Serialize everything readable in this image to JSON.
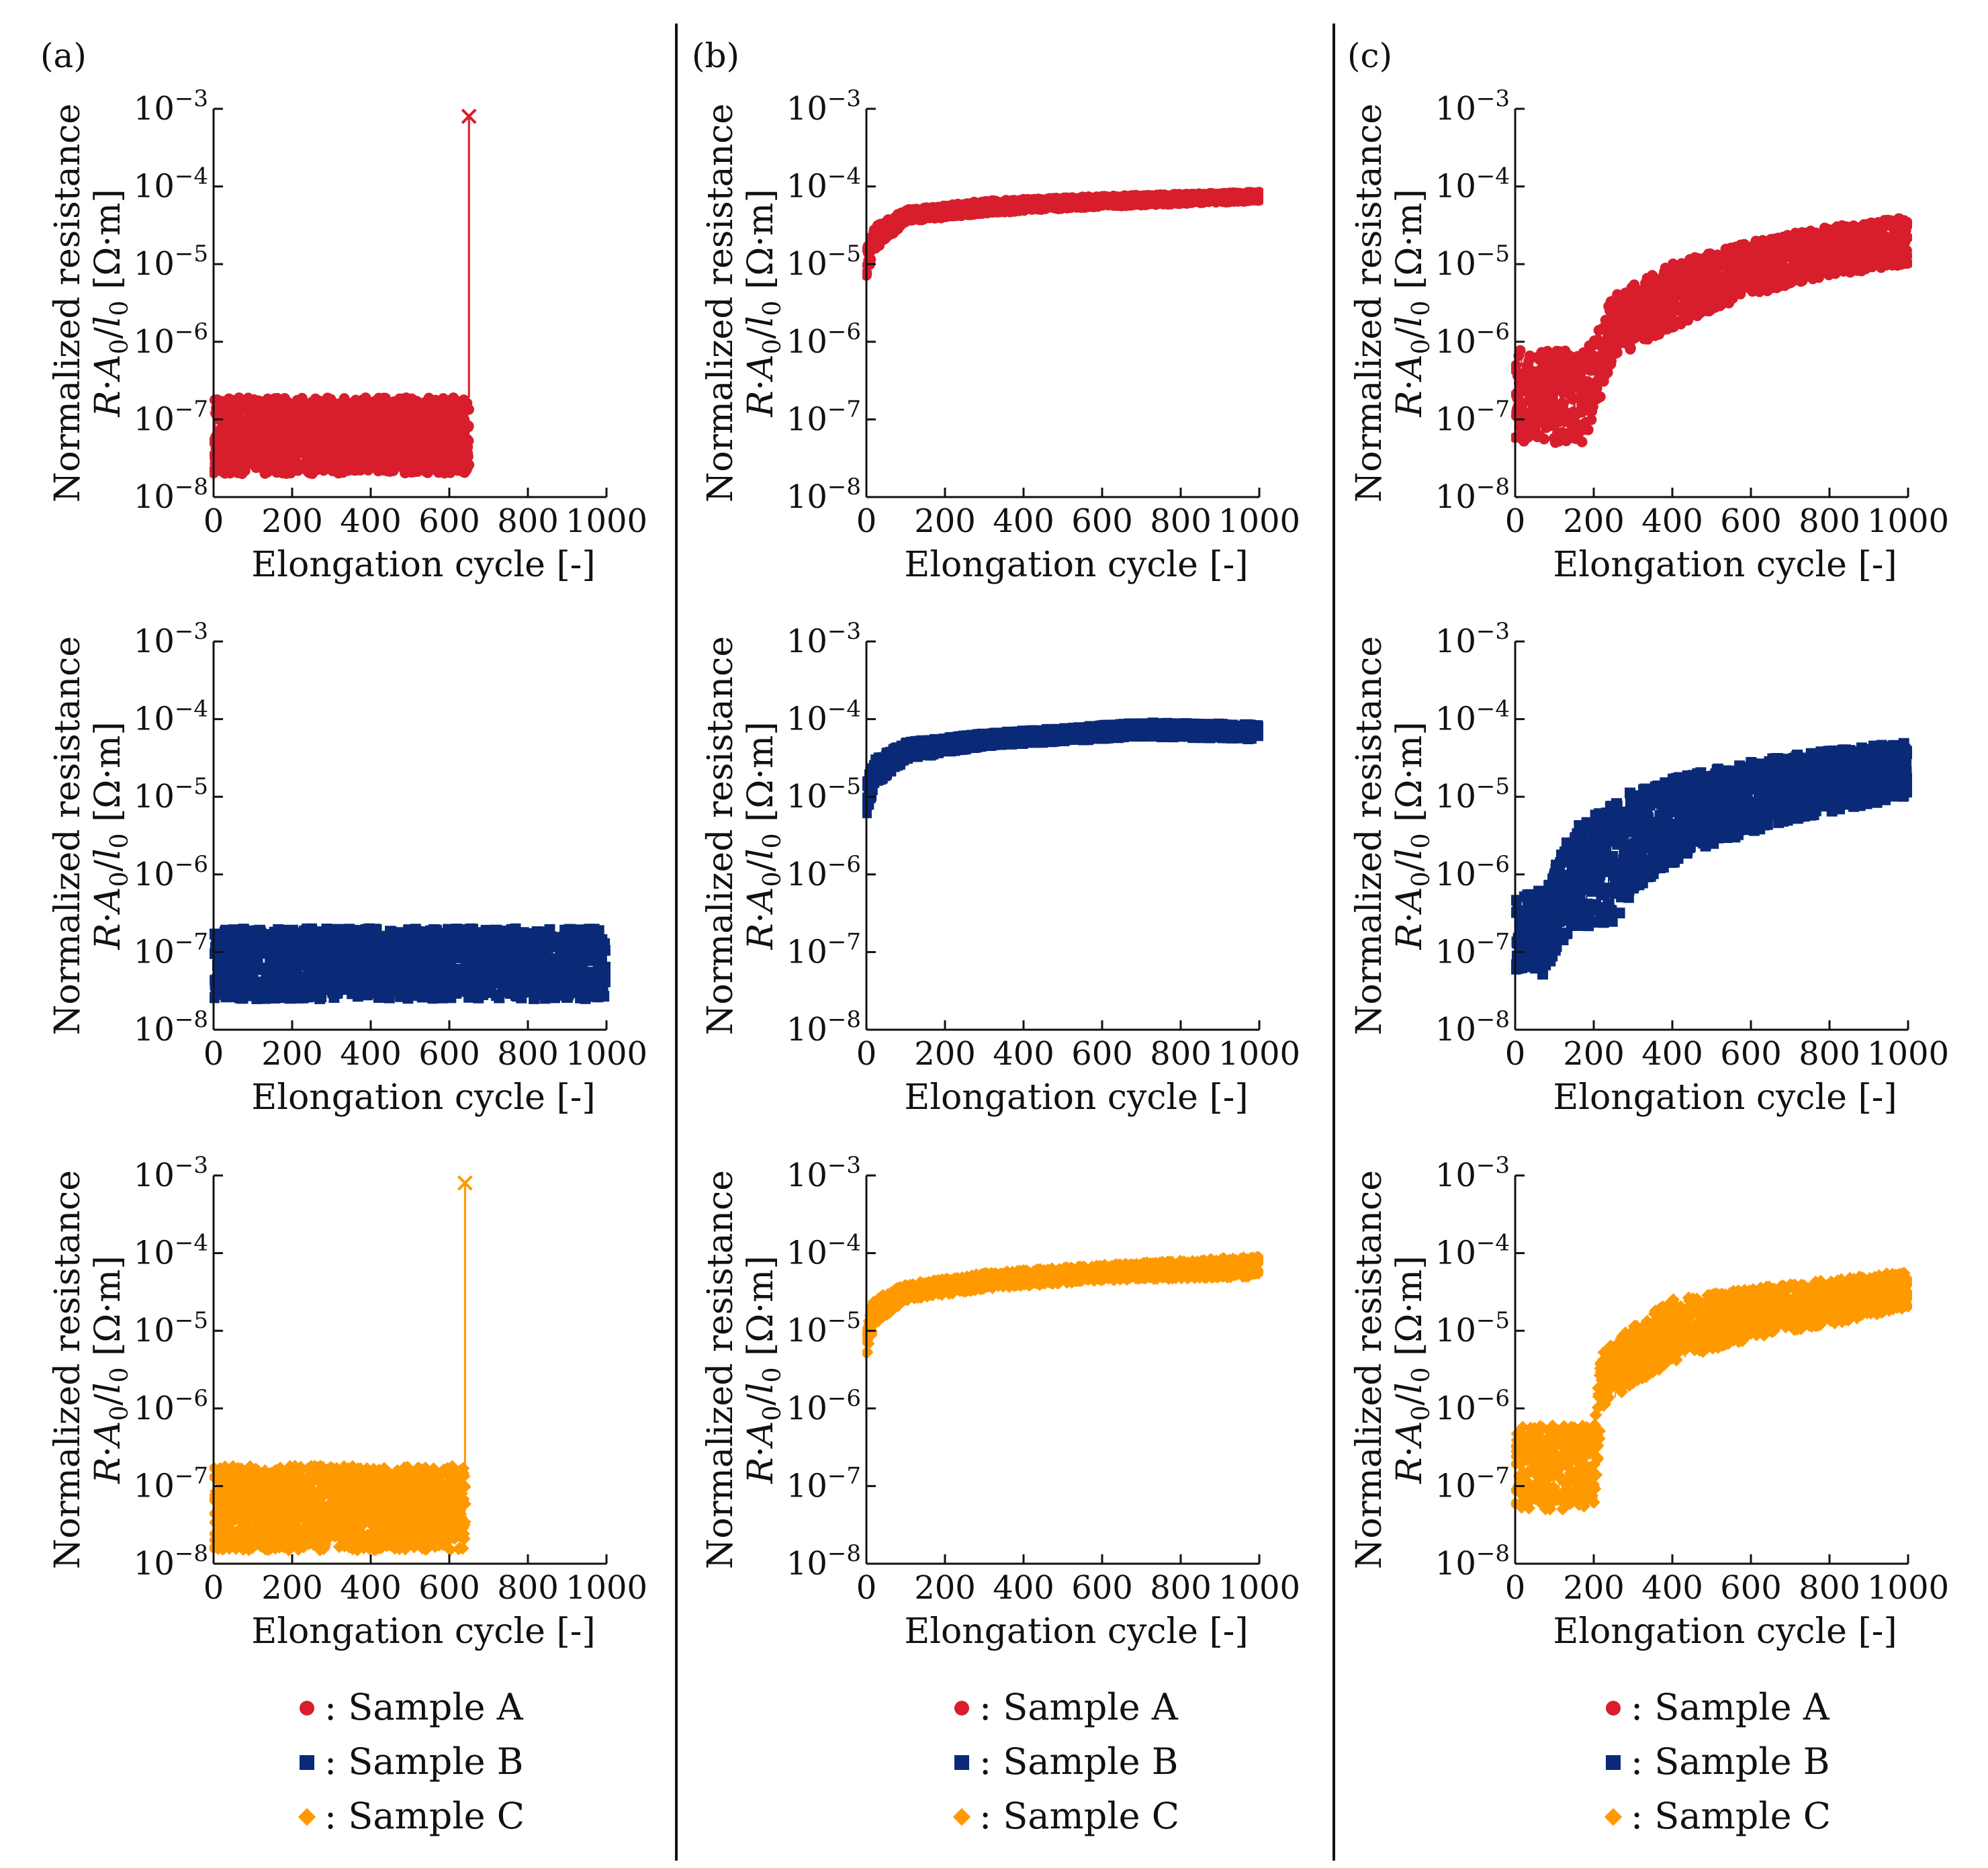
{
  "figure": {
    "colors": {
      "sample_a": "#d81e2c",
      "sample_b": "#0a2a78",
      "sample_c": "#ff9900",
      "ink": "#111111"
    }
  },
  "columns": [
    {
      "tag": "(a)",
      "legend": [
        {
          "symbol": "●",
          "text": ": Sample A",
          "color": "#d81e2c"
        },
        {
          "symbol": "■",
          "text": ": Sample B",
          "color": "#0a2a78"
        },
        {
          "symbol": "◆",
          "text": ": Sample C",
          "color": "#ff9900"
        }
      ]
    },
    {
      "tag": "(b)",
      "legend": [
        {
          "symbol": "●",
          "text": ": Sample A",
          "color": "#d81e2c"
        },
        {
          "symbol": "■",
          "text": ": Sample B",
          "color": "#0a2a78"
        },
        {
          "symbol": "◆",
          "text": ": Sample C",
          "color": "#ff9900"
        }
      ]
    },
    {
      "tag": "(c)",
      "legend": [
        {
          "symbol": "●",
          "text": ": Sample A",
          "color": "#d81e2c"
        },
        {
          "symbol": "■",
          "text": ": Sample B",
          "color": "#0a2a78"
        },
        {
          "symbol": "◆",
          "text": ": Sample C",
          "color": "#ff9900"
        }
      ]
    }
  ],
  "chart_data": [
    {
      "id": "a-A",
      "type": "scatter",
      "column": "a",
      "row": 0,
      "series": "Sample A",
      "color": "#d81e2c",
      "marker": "circle",
      "xlabel": "Elongation cycle [-]",
      "ylabel": [
        "Normalized resistance",
        "R·A0/l0 [Ω·m]"
      ],
      "xlim": [
        0,
        1000
      ],
      "ylim": [
        1e-08,
        0.001
      ],
      "yscale": "log",
      "xticks": [
        "0",
        "200",
        "400",
        "600",
        "800",
        "1000"
      ],
      "yticks": [
        "10-8",
        "10-7",
        "10-6",
        "10-5",
        "10-4",
        "10-3"
      ],
      "band": [
        [
          0,
          2e-08,
          1.9e-07
        ],
        [
          650,
          2e-08,
          1.9e-07
        ]
      ],
      "failure": {
        "cycle": 650,
        "value": 0.0008,
        "marker": "x"
      }
    },
    {
      "id": "a-B",
      "type": "scatter",
      "column": "a",
      "row": 1,
      "series": "Sample B",
      "color": "#0a2a78",
      "marker": "square",
      "xlabel": "Elongation cycle [-]",
      "ylabel": [
        "Normalized resistance",
        "R·A0/l0 [Ω·m]"
      ],
      "xlim": [
        0,
        1000
      ],
      "ylim": [
        1e-08,
        0.001
      ],
      "yscale": "log",
      "xticks": [
        "0",
        "200",
        "400",
        "600",
        "800",
        "1000"
      ],
      "yticks": [
        "10-8",
        "10-7",
        "10-6",
        "10-5",
        "10-4",
        "10-3"
      ],
      "band": [
        [
          0,
          2.5e-08,
          2e-07
        ],
        [
          1000,
          2.5e-08,
          2e-07
        ]
      ]
    },
    {
      "id": "a-C",
      "type": "scatter",
      "column": "a",
      "row": 2,
      "series": "Sample C",
      "color": "#ff9900",
      "marker": "diamond",
      "xlabel": "Elongation cycle [-]",
      "ylabel": [
        "Normalized resistance",
        "R·A0/l0 [Ω·m]"
      ],
      "xlim": [
        0,
        1000
      ],
      "ylim": [
        1e-08,
        0.001
      ],
      "yscale": "log",
      "xticks": [
        "0",
        "200",
        "400",
        "600",
        "800",
        "1000"
      ],
      "yticks": [
        "10-8",
        "10-7",
        "10-6",
        "10-5",
        "10-4",
        "10-3"
      ],
      "band": [
        [
          0,
          1.5e-08,
          1.8e-07
        ],
        [
          640,
          1.5e-08,
          1.8e-07
        ]
      ],
      "failure": {
        "cycle": 640,
        "value": 0.0008,
        "marker": "x"
      }
    },
    {
      "id": "b-A",
      "type": "scatter",
      "column": "b",
      "row": 0,
      "series": "Sample A",
      "color": "#d81e2c",
      "marker": "circle",
      "xlabel": "Elongation cycle [-]",
      "ylabel": [
        "Normalized resistance",
        "R·A0/l0 [Ω·m]"
      ],
      "xlim": [
        0,
        1000
      ],
      "ylim": [
        1e-08,
        0.001
      ],
      "yscale": "log",
      "xticks": [
        "0",
        "200",
        "400",
        "600",
        "800",
        "1000"
      ],
      "yticks": [
        "10-8",
        "10-7",
        "10-6",
        "10-5",
        "10-4",
        "10-3"
      ],
      "band": [
        [
          0,
          7e-06,
          1.5e-05
        ],
        [
          20,
          1.5e-05,
          3e-05
        ],
        [
          100,
          3.5e-05,
          5e-05
        ],
        [
          300,
          4.5e-05,
          6.5e-05
        ],
        [
          600,
          5.5e-05,
          7.5e-05
        ],
        [
          1000,
          6.5e-05,
          8.5e-05
        ]
      ]
    },
    {
      "id": "b-B",
      "type": "scatter",
      "column": "b",
      "row": 1,
      "series": "Sample B",
      "color": "#0a2a78",
      "marker": "square",
      "xlabel": "Elongation cycle [-]",
      "ylabel": [
        "Normalized resistance",
        "R·A0/l0 [Ω·m]"
      ],
      "xlim": [
        0,
        1000
      ],
      "ylim": [
        1e-08,
        0.001
      ],
      "yscale": "log",
      "xticks": [
        "0",
        "200",
        "400",
        "600",
        "800",
        "1000"
      ],
      "yticks": [
        "10-8",
        "10-7",
        "10-6",
        "10-5",
        "10-4",
        "10-3"
      ],
      "band": [
        [
          0,
          6e-06,
          1.4e-05
        ],
        [
          20,
          1.4e-05,
          3e-05
        ],
        [
          100,
          3e-05,
          5e-05
        ],
        [
          300,
          4.5e-05,
          6.5e-05
        ],
        [
          700,
          6e-05,
          9e-05
        ],
        [
          1000,
          5.5e-05,
          8.5e-05
        ]
      ]
    },
    {
      "id": "b-C",
      "type": "scatter",
      "column": "b",
      "row": 2,
      "series": "Sample C",
      "color": "#ff9900",
      "marker": "diamond",
      "xlabel": "Elongation cycle [-]",
      "ylabel": [
        "Normalized resistance",
        "R·A0/l0 [Ω·m]"
      ],
      "xlim": [
        0,
        1000
      ],
      "ylim": [
        1e-08,
        0.001
      ],
      "yscale": "log",
      "xticks": [
        "0",
        "200",
        "400",
        "600",
        "800",
        "1000"
      ],
      "yticks": [
        "10-8",
        "10-7",
        "10-6",
        "10-5",
        "10-4",
        "10-3"
      ],
      "band": [
        [
          0,
          5e-06,
          1e-05
        ],
        [
          20,
          1.2e-05,
          2.5e-05
        ],
        [
          100,
          2.5e-05,
          4e-05
        ],
        [
          300,
          3.5e-05,
          5.5e-05
        ],
        [
          600,
          4.5e-05,
          7e-05
        ],
        [
          1000,
          5e-05,
          9e-05
        ]
      ]
    },
    {
      "id": "c-A",
      "type": "scatter",
      "column": "c",
      "row": 0,
      "series": "Sample A",
      "color": "#d81e2c",
      "marker": "circle",
      "xlabel": "Elongation cycle [-]",
      "ylabel": [
        "Normalized resistance",
        "R·A0/l0 [Ω·m]"
      ],
      "xlim": [
        0,
        1000
      ],
      "ylim": [
        1e-08,
        0.001
      ],
      "yscale": "log",
      "xticks": [
        "0",
        "200",
        "400",
        "600",
        "800",
        "1000"
      ],
      "yticks": [
        "10-8",
        "10-7",
        "10-6",
        "10-5",
        "10-4",
        "10-3"
      ],
      "band": [
        [
          0,
          5e-08,
          8e-07
        ],
        [
          170,
          5e-08,
          8e-07
        ],
        [
          200,
          1e-07,
          1e-06
        ],
        [
          250,
          6e-07,
          4e-06
        ],
        [
          400,
          1.5e-06,
          1e-05
        ],
        [
          600,
          4e-06,
          2e-05
        ],
        [
          800,
          7e-06,
          3e-05
        ],
        [
          1000,
          1e-05,
          4e-05
        ]
      ]
    },
    {
      "id": "c-B",
      "type": "scatter",
      "column": "c",
      "row": 1,
      "series": "Sample B",
      "color": "#0a2a78",
      "marker": "square",
      "xlabel": "Elongation cycle [-]",
      "ylabel": [
        "Normalized resistance",
        "R·A0/l0 [Ω·m]"
      ],
      "xlim": [
        0,
        1000
      ],
      "ylim": [
        1e-08,
        0.001
      ],
      "yscale": "log",
      "xticks": [
        "0",
        "200",
        "400",
        "600",
        "800",
        "1000"
      ],
      "yticks": [
        "10-8",
        "10-7",
        "10-6",
        "10-5",
        "10-4",
        "10-3"
      ],
      "band": [
        [
          0,
          6e-08,
          5e-07
        ],
        [
          80,
          5e-08,
          7e-07
        ],
        [
          100,
          1e-07,
          1.2e-06
        ],
        [
          150,
          2e-07,
          4e-06
        ],
        [
          250,
          2e-07,
          8e-06
        ],
        [
          300,
          6e-07,
          1.2e-05
        ],
        [
          450,
          2e-06,
          2e-05
        ],
        [
          700,
          5e-06,
          3.5e-05
        ],
        [
          1000,
          1e-05,
          5e-05
        ]
      ]
    },
    {
      "id": "c-C",
      "type": "scatter",
      "column": "c",
      "row": 2,
      "series": "Sample C",
      "color": "#ff9900",
      "marker": "diamond",
      "xlabel": "Elongation cycle [-]",
      "ylabel": [
        "Normalized resistance",
        "R·A0/l0 [Ω·m]"
      ],
      "xlim": [
        0,
        1000
      ],
      "ylim": [
        1e-08,
        0.001
      ],
      "yscale": "log",
      "xticks": [
        "0",
        "200",
        "400",
        "600",
        "800",
        "1000"
      ],
      "yticks": [
        "10-8",
        "10-7",
        "10-6",
        "10-5",
        "10-4",
        "10-3"
      ],
      "band": [
        [
          0,
          5e-08,
          6e-07
        ],
        [
          200,
          5e-08,
          6e-07
        ],
        [
          220,
          1e-06,
          5e-06
        ],
        [
          300,
          2e-06,
          1.2e-05
        ],
        [
          400,
          4e-06,
          2.5e-05
        ],
        [
          600,
          8e-06,
          3.5e-05
        ],
        [
          800,
          1.2e-05,
          4.5e-05
        ],
        [
          1000,
          2e-05,
          6e-05
        ]
      ]
    }
  ]
}
